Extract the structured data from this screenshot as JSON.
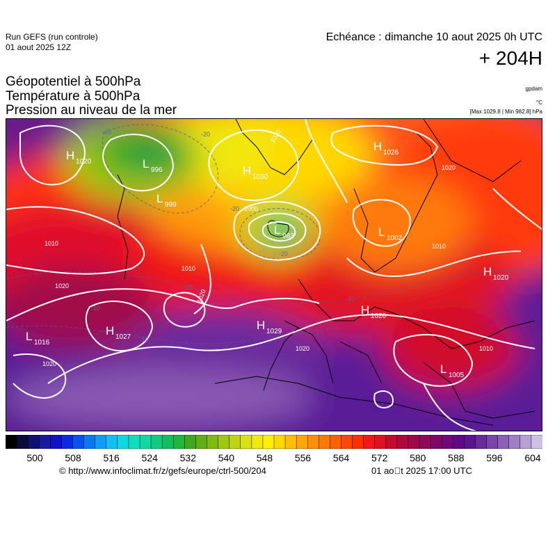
{
  "header": {
    "run_title": "Run GEFS (run controle)",
    "run_date": "01 aout 2025 12Z",
    "valid_time": "Echéance : dimanche 10 aout 2025 0h UTC",
    "lead_hours": "+ 204H"
  },
  "parameters": {
    "line1": "Géopotentiel à 500hPa",
    "line2": "Température à 500hPa",
    "line3": "Pression au niveau de la mer",
    "unit_geopotential": "gpdam",
    "unit_temperature": "°C",
    "extrema": "[Max 1029.8 | Min 982.8] hPa"
  },
  "map": {
    "region": "europe",
    "pressure_systems": [
      {
        "type": "H",
        "value": "1020"
      },
      {
        "type": "L",
        "value": "996"
      },
      {
        "type": "L",
        "value": "999"
      },
      {
        "type": "H",
        "value": "1030"
      },
      {
        "type": "L",
        "value": "983"
      },
      {
        "type": "H",
        "value": "1026"
      },
      {
        "type": "L",
        "value": "1002"
      },
      {
        "type": "H",
        "value": "1020"
      },
      {
        "type": "H",
        "value": "1026"
      },
      {
        "type": "H",
        "value": "1029"
      },
      {
        "type": "H",
        "value": "1027"
      },
      {
        "type": "L",
        "value": "1016"
      },
      {
        "type": "L",
        "value": "1005"
      }
    ],
    "isobar_labels": [
      "1020",
      "1010",
      "1010",
      "1010",
      "1000",
      "1020",
      "1020",
      "1020",
      "1020",
      "1020",
      "1010"
    ],
    "isotherm_labels": [
      "-20",
      "-20",
      "-20",
      "-20",
      "-10",
      "-10",
      "-10",
      "-10"
    ]
  },
  "colorbar": {
    "labels": [
      "500",
      "508",
      "516",
      "524",
      "532",
      "540",
      "548",
      "556",
      "564",
      "572",
      "580",
      "588",
      "596",
      "604"
    ],
    "colors": [
      "#000000",
      "#0a0a3c",
      "#10106e",
      "#1a1aa0",
      "#1010c8",
      "#0a2ae6",
      "#0a50f0",
      "#0a78f5",
      "#0aa0f5",
      "#10c0f0",
      "#10d8e0",
      "#10dcc0",
      "#10d8a0",
      "#10cc80",
      "#10c060",
      "#20b440",
      "#40a820",
      "#60b010",
      "#80bc10",
      "#a0c810",
      "#c0d410",
      "#dce010",
      "#f0e810",
      "#fff000",
      "#ffd800",
      "#ffc000",
      "#ffa800",
      "#ff9000",
      "#ff7800",
      "#ff6000",
      "#ff4800",
      "#ff3000",
      "#f01818",
      "#e01020",
      "#c8082c",
      "#b00838",
      "#a00848",
      "#900858",
      "#800868",
      "#700878",
      "#600888",
      "#5a1490",
      "#6a2a9c",
      "#7a44a8",
      "#8c60b8",
      "#a080c4",
      "#b8a0d4",
      "#d0c0e4"
    ]
  },
  "footer": {
    "url": "© http://www.infoclimat.fr/z/gefs/europe/ctrl-500/204",
    "generated": "01 ao\u0000t 2025 17:00 UTC"
  }
}
